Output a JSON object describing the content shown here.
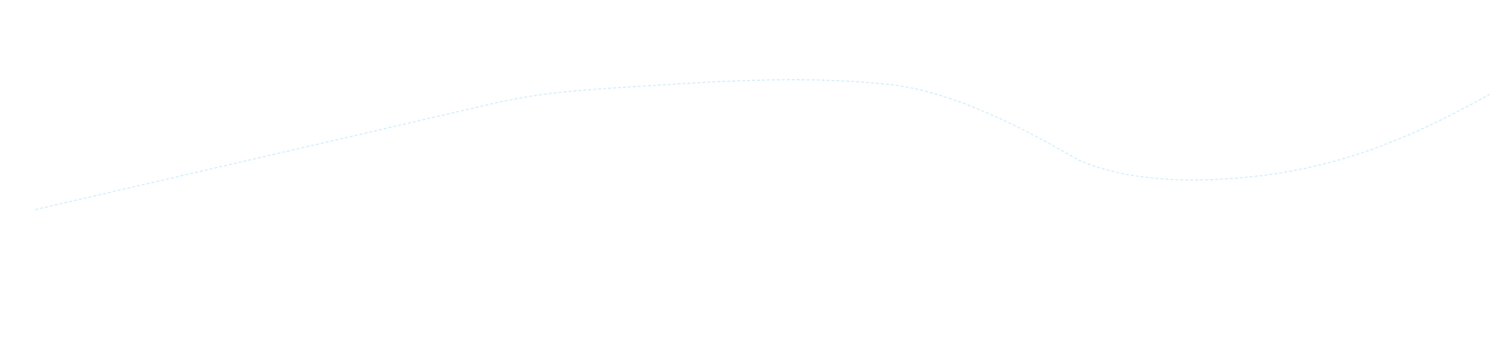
{
  "curve": {
    "stroke_color": "#bfe6f8",
    "style": "dashed"
  }
}
